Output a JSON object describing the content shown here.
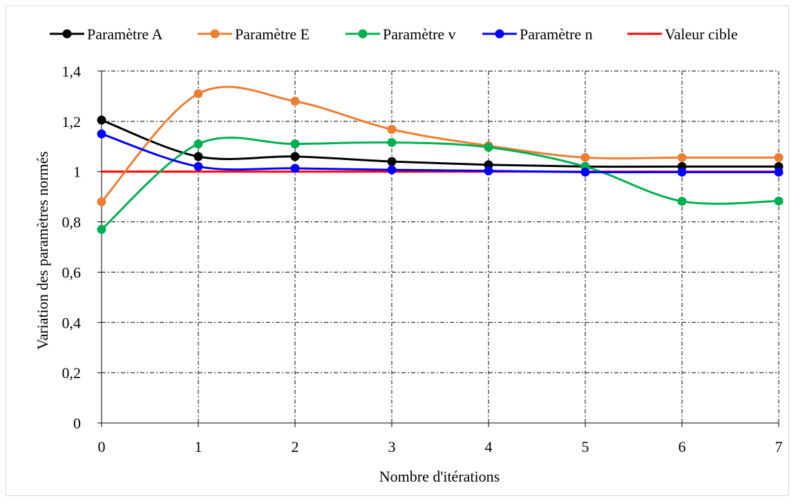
{
  "chart_data": {
    "type": "line",
    "title": "",
    "xlabel": "Nombre d'itérations",
    "ylabel": "Variation des paramètres normés",
    "xlim": [
      0,
      7
    ],
    "ylim": [
      0,
      1.4
    ],
    "x": [
      0,
      1,
      2,
      3,
      4,
      5,
      6,
      7
    ],
    "x_tick_labels": [
      "0",
      "1",
      "2",
      "3",
      "4",
      "5",
      "6",
      "7"
    ],
    "y_tick_labels": [
      "0",
      "0,2",
      "0,4",
      "0,6",
      "0,8",
      "1",
      "1,2",
      "1,4"
    ],
    "grid": true,
    "legend_position": "top",
    "series": [
      {
        "name": "Paramètre A",
        "color": "#000000",
        "markers": true,
        "values": [
          1.205,
          1.06,
          1.06,
          1.04,
          1.027,
          1.02,
          1.02,
          1.02
        ]
      },
      {
        "name": "Paramètre E",
        "color": "#ed7d31",
        "markers": true,
        "values": [
          0.88,
          1.31,
          1.28,
          1.168,
          1.103,
          1.056,
          1.056,
          1.056
        ]
      },
      {
        "name": "Paramètre v",
        "color": "#00b050",
        "markers": true,
        "values": [
          0.77,
          1.11,
          1.11,
          1.116,
          1.097,
          1.02,
          0.882,
          0.883
        ]
      },
      {
        "name": "Paramètre n",
        "color": "#0000ff",
        "markers": true,
        "values": [
          1.15,
          1.02,
          1.013,
          1.007,
          1.003,
          0.998,
          0.998,
          0.998
        ]
      },
      {
        "name": "Valeur cible",
        "color": "#ff0000",
        "markers": false,
        "values": [
          1,
          1,
          1,
          1,
          1,
          1,
          1,
          1
        ]
      }
    ]
  }
}
